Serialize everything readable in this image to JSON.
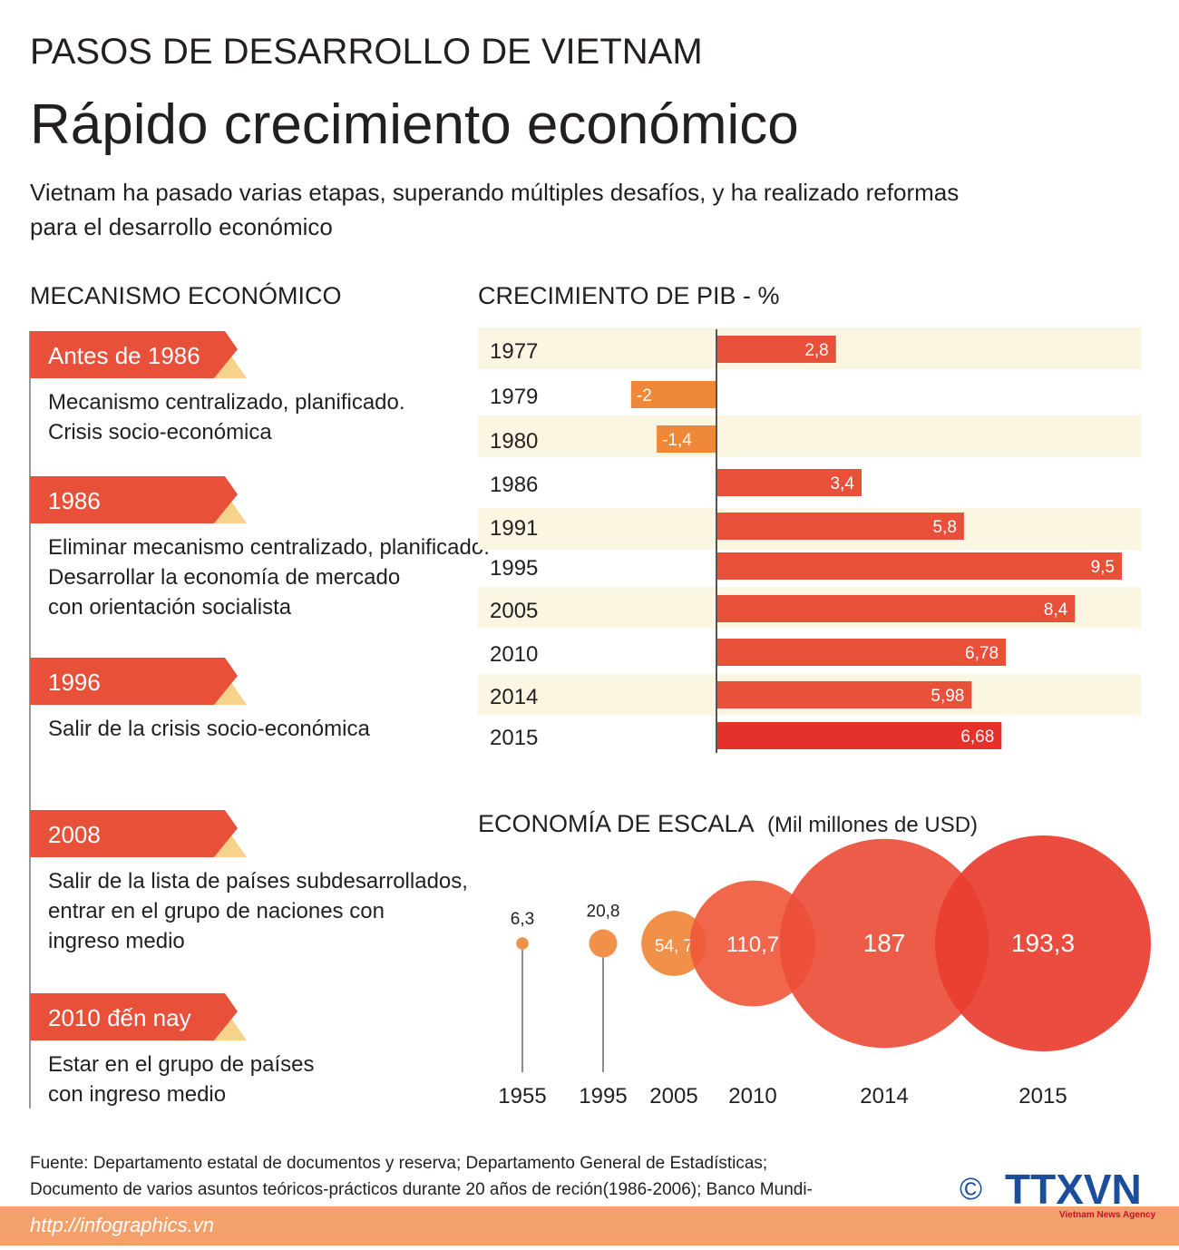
{
  "header": {
    "kicker": "PASOS DE DESARROLLO DE VIETNAM",
    "title": "Rápido crecimiento económico",
    "subtitle": [
      "Vietnam ha pasado varias etapas, superando múltiples desafíos, y ha realizado reformas",
      "para el desarrollo económico"
    ]
  },
  "timeline": {
    "title": "MECANISMO ECONÓMICO",
    "items": [
      {
        "label": "Antes de 1986",
        "text": [
          "Mecanismo centralizado, planificado.",
          "Crisis socio-económica"
        ]
      },
      {
        "label": "1986",
        "text": [
          "Eliminar mecanismo centralizado, planificado.",
          "Desarrollar la economía de mercado",
          "con orientación socialista"
        ]
      },
      {
        "label": "1996",
        "text": [
          "Salir de la crisis socio-económica"
        ]
      },
      {
        "label": "2008",
        "text": [
          "Salir de la lista de países subdesarrollados,",
          "entrar en el grupo de naciones con",
          "ingreso medio"
        ]
      },
      {
        "label": "2010 đến nay",
        "text": [
          "Estar en el grupo de países",
          "con ingreso medio"
        ]
      }
    ]
  },
  "chart_data": [
    {
      "type": "bar",
      "title": "CRECIMIENTO DE PIB - %",
      "categories": [
        "1977",
        "1979",
        "1980",
        "1986",
        "1991",
        "1995",
        "2005",
        "2010",
        "2014",
        "2015"
      ],
      "values": [
        2.8,
        -2,
        -1.4,
        3.4,
        5.8,
        9.5,
        8.4,
        6.78,
        5.98,
        6.68
      ],
      "value_labels": [
        "2,8",
        "-2",
        "-1,4",
        "3,4",
        "5,8",
        "9,5",
        "8,4",
        "6,78",
        "5,98",
        "6,68"
      ],
      "colors": [
        "#e8503a",
        "#f0883a",
        "#f0883a",
        "#e8503a",
        "#e8503a",
        "#e8503a",
        "#e8503a",
        "#e8503a",
        "#e8503a",
        "#e6302a"
      ]
    },
    {
      "type": "bubble",
      "title": "ECONOMÍA DE ESCALA",
      "subtitle": "(Mil millones de USD)",
      "categories": [
        "1955",
        "1995",
        "2005",
        "2010",
        "2014",
        "2015"
      ],
      "values": [
        6.3,
        20.8,
        54.7,
        110.7,
        187,
        193.3
      ],
      "value_labels": [
        "6,3",
        "20,8",
        "54, 7",
        "110,7",
        "187",
        "193,3"
      ],
      "colors": [
        "#f0883a",
        "#f0883a",
        "#f0883a",
        "#ef5a3c",
        "#ec4e38",
        "#e83e30"
      ]
    }
  ],
  "footer": {
    "source": [
      "Fuente: Departamento estatal de documentos y reserva; Departamento General de Estadísticas;",
      "Documento de varios asuntos teóricos-prácticos durante 20 años de reción(1986-2006); Banco Mundi-"
    ],
    "url": "http://infographics.vn",
    "copyright": "©",
    "logo": "TTXVN",
    "logo_sub": "Vietnam News Agency"
  }
}
